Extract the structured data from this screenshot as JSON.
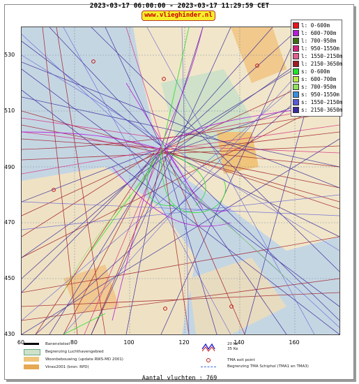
{
  "header": {
    "title": "2023-03-17 06:00:00 - 2023-03-17 11:29:59 CET",
    "site": "www.vlieghinder.nl"
  },
  "axes": {
    "y_ticks": [
      "530",
      "510",
      "490",
      "470",
      "450",
      "430"
    ],
    "x_ticks": [
      "60",
      "80",
      "100",
      "120",
      "140",
      "160"
    ]
  },
  "legend": [
    {
      "label": "l: 0-600m",
      "color": "#e8141c"
    },
    {
      "label": "l: 600-700m",
      "color": "#b21fd6"
    },
    {
      "label": "l: 700-950m",
      "color": "#3d6e12"
    },
    {
      "label": "l: 950-1550m",
      "color": "#d6237a"
    },
    {
      "label": "l: 1550-2150m",
      "color": "#e0608c"
    },
    {
      "label": "l: 2150-3650m",
      "color": "#a01a22"
    },
    {
      "label": "s: 0-600m",
      "color": "#22e12a"
    },
    {
      "label": "s: 600-700m",
      "color": "#b8e64a"
    },
    {
      "label": "s: 700-950m",
      "color": "#8ce05a"
    },
    {
      "label": "s: 950-1550m",
      "color": "#3a8fdc"
    },
    {
      "label": "s: 1550-2150m",
      "color": "#5a5ad6"
    },
    {
      "label": "s: 2150-3650m",
      "color": "#3a2a9a"
    }
  ],
  "bottom_legend": {
    "banenstelsel": "Banenstelsel",
    "luchthaven": "Begrenzing Luchthavengebied",
    "woonbebouwing": "Woonbebouwing (update RWS-MD 2001)",
    "vinex": "Vinex2001 (bron: RPD)",
    "wind_20": "20 Ke",
    "wind_35": "35 Ke",
    "tma_exit": "TMA exit point",
    "tma_boundary": "Begrenzing TMA Schiphol  (TMA1 en TMA3)"
  },
  "footer": {
    "count": "Aantal vluchten : 769"
  }
}
